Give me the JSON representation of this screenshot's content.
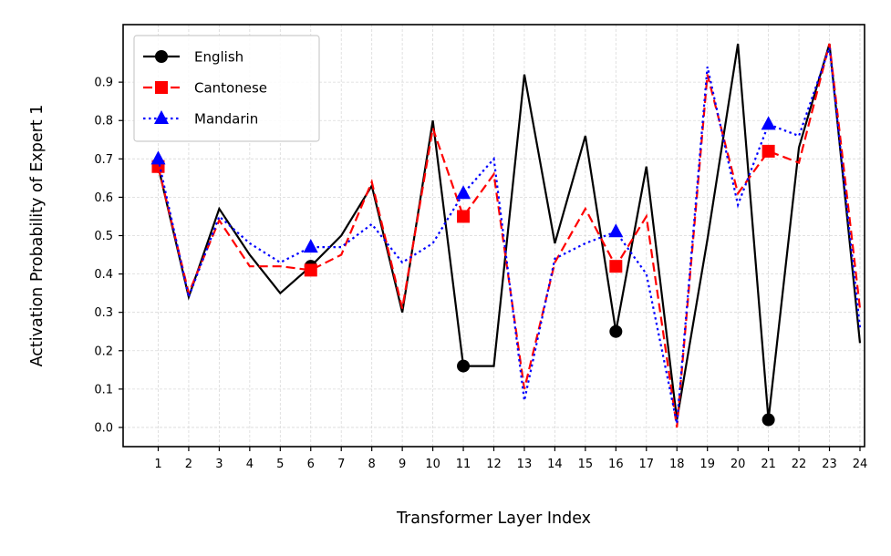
{
  "chart_data": {
    "type": "line",
    "xlabel": "Transformer Layer Index",
    "ylabel": "Activation Probability of Expert 1",
    "x": [
      1,
      2,
      3,
      4,
      5,
      6,
      7,
      8,
      9,
      10,
      11,
      12,
      13,
      14,
      15,
      16,
      17,
      18,
      19,
      20,
      21,
      22,
      23,
      24
    ],
    "xlim": [
      -0.15,
      24.15
    ],
    "ylim": [
      -0.05,
      1.05
    ],
    "yticks": [
      0.0,
      0.1,
      0.2,
      0.3,
      0.4,
      0.5,
      0.6,
      0.7,
      0.8,
      0.9
    ],
    "ytick_labels": [
      "0.0",
      "0.1",
      "0.2",
      "0.3",
      "0.4",
      "0.5",
      "0.6",
      "0.7",
      "0.8",
      "0.9"
    ],
    "xtick_labels": [
      "1",
      "2",
      "3",
      "4",
      "5",
      "6",
      "7",
      "8",
      "9",
      "10",
      "11",
      "12",
      "13",
      "14",
      "15",
      "16",
      "17",
      "18",
      "19",
      "20",
      "21",
      "22",
      "23",
      "24"
    ],
    "grid": true,
    "legend_position": "top-left",
    "series": [
      {
        "name": "English",
        "color": "#000000",
        "linestyle": "solid",
        "marker": "circle",
        "marker_every": 5,
        "values": [
          0.68,
          0.34,
          0.57,
          0.45,
          0.35,
          0.42,
          0.5,
          0.63,
          0.3,
          0.8,
          0.16,
          0.16,
          0.92,
          0.48,
          0.76,
          0.25,
          0.68,
          0.02,
          0.49,
          1.0,
          0.02,
          0.73,
          1.0,
          0.22
        ]
      },
      {
        "name": "Cantonese",
        "color": "#ff0000",
        "linestyle": "dashed",
        "marker": "square",
        "marker_every": 5,
        "values": [
          0.68,
          0.35,
          0.54,
          0.42,
          0.42,
          0.41,
          0.45,
          0.64,
          0.31,
          0.78,
          0.55,
          0.66,
          0.1,
          0.43,
          0.57,
          0.42,
          0.55,
          0.0,
          0.92,
          0.61,
          0.72,
          0.69,
          1.0,
          0.31
        ]
      },
      {
        "name": "Mandarin",
        "color": "#0000ff",
        "linestyle": "dotted",
        "marker": "triangle",
        "marker_every": 5,
        "values": [
          0.7,
          0.34,
          0.55,
          0.48,
          0.43,
          0.47,
          0.47,
          0.53,
          0.43,
          0.48,
          0.61,
          0.7,
          0.07,
          0.44,
          0.48,
          0.51,
          0.4,
          0.01,
          0.94,
          0.58,
          0.79,
          0.76,
          0.99,
          0.26
        ]
      }
    ]
  }
}
